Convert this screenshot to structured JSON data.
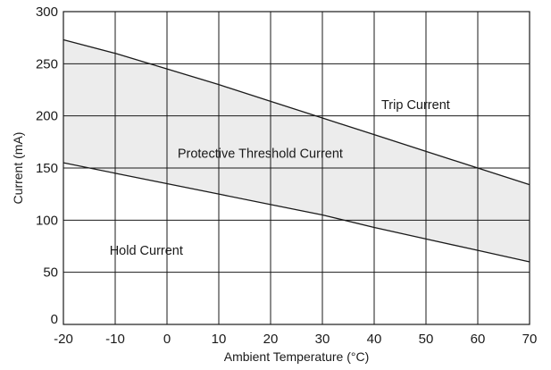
{
  "chart_data": {
    "type": "line",
    "title": "",
    "xlabel": "Ambient Temperature (°C)",
    "ylabel": "Current (mA)",
    "xlim": [
      -20,
      70
    ],
    "ylim": [
      0,
      300
    ],
    "xticks": [
      -20,
      -10,
      0,
      10,
      20,
      30,
      40,
      50,
      60,
      70
    ],
    "yticks": [
      0,
      50,
      100,
      150,
      200,
      250,
      300
    ],
    "grid": true,
    "series": [
      {
        "name": "Trip Current",
        "x": [
          -20,
          -10,
          0,
          10,
          20,
          30,
          40,
          50,
          60,
          70
        ],
        "y": [
          273,
          260,
          245,
          230,
          214,
          198,
          182,
          166,
          150,
          134
        ]
      },
      {
        "name": "Hold Current",
        "x": [
          -20,
          -10,
          0,
          10,
          20,
          30,
          40,
          50,
          60,
          70
        ],
        "y": [
          155,
          145,
          135,
          125,
          115,
          105,
          93,
          82,
          71,
          60
        ]
      }
    ],
    "shaded_region": {
      "between": [
        "Trip Current",
        "Hold Current"
      ],
      "color": "#ececec"
    },
    "annotations": [
      {
        "text": "Trip Current",
        "x": 48,
        "y": 211
      },
      {
        "text": "Protective Threshold Current",
        "x": 18,
        "y": 164
      },
      {
        "text": "Hold Current",
        "x": -4,
        "y": 71
      }
    ],
    "colors": {
      "line": "#1a1a1a",
      "grid": "#1a1a1a",
      "fill": "#ececec"
    }
  }
}
